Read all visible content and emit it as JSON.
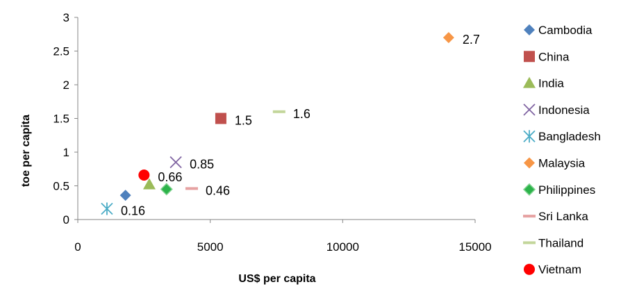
{
  "chart_data": {
    "type": "scatter",
    "xlabel": "US$ per capita",
    "ylabel": "toe per capita",
    "xlim": [
      0,
      15000
    ],
    "ylim": [
      0,
      3
    ],
    "x_ticks": [
      "0",
      "5000",
      "10000",
      "15000"
    ],
    "y_ticks": [
      "0",
      "0.5",
      "1",
      "1.5",
      "2",
      "2.5",
      "3"
    ],
    "grid": false,
    "legend": "right",
    "series": [
      {
        "name": "Cambodia",
        "marker": "diamond",
        "color": "#4F81BD",
        "x": 1800,
        "y": 0.36,
        "label": ""
      },
      {
        "name": "China",
        "marker": "square",
        "color": "#C0504D",
        "x": 5400,
        "y": 1.5,
        "label": "1.5"
      },
      {
        "name": "India",
        "marker": "triangle",
        "color": "#9BBB59",
        "x": 2700,
        "y": 0.52,
        "label": ""
      },
      {
        "name": "Indonesia",
        "marker": "x",
        "color": "#8064A2",
        "x": 3700,
        "y": 0.85,
        "label": "0.85"
      },
      {
        "name": "Bangladesh",
        "marker": "star",
        "color": "#4BACC6",
        "x": 1100,
        "y": 0.16,
        "label": "0.16"
      },
      {
        "name": "Malaysia",
        "marker": "diamond",
        "color": "#F79646",
        "x": 14000,
        "y": 2.7,
        "label": "2.7"
      },
      {
        "name": "Philippines",
        "marker": "diamond",
        "color": "#2CB34A",
        "x": 3350,
        "y": 0.45,
        "label": ""
      },
      {
        "name": "Sri Lanka",
        "marker": "dash",
        "color": "#E6A2A2",
        "x": 4300,
        "y": 0.46,
        "label": "0.46"
      },
      {
        "name": "Thailand",
        "marker": "dash",
        "color": "#C3D69B",
        "x": 7600,
        "y": 1.6,
        "label": "1.6"
      },
      {
        "name": "Vietnam",
        "marker": "circle",
        "color": "#FF0000",
        "x": 2500,
        "y": 0.66,
        "label": "0.66"
      }
    ]
  }
}
